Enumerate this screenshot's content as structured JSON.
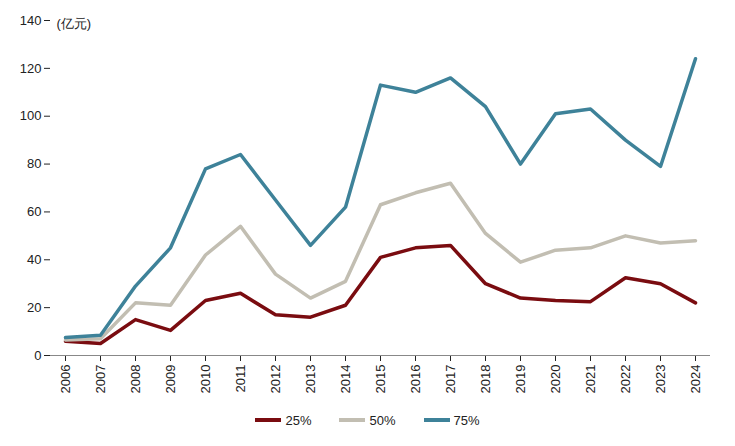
{
  "chart_data": {
    "type": "line",
    "y_label": "(亿元)",
    "categories": [
      "2006",
      "2007",
      "2008",
      "2009",
      "2010",
      "2011",
      "2012",
      "2013",
      "2014",
      "2015",
      "2016",
      "2017",
      "2018",
      "2019",
      "2020",
      "2021",
      "2022",
      "2023",
      "2024"
    ],
    "series": [
      {
        "name": "25%",
        "color": "#7a0c10",
        "values": [
          6,
          5,
          15,
          10.5,
          23,
          26,
          17,
          16,
          21,
          41,
          45,
          46,
          30,
          24,
          23,
          22.5,
          32.5,
          30,
          22
        ]
      },
      {
        "name": "50%",
        "color": "#c2beb2",
        "values": [
          6.5,
          7,
          22,
          21,
          42,
          54,
          34,
          24,
          31,
          63,
          68,
          72,
          51,
          39,
          44,
          45,
          50,
          47,
          48
        ]
      },
      {
        "name": "75%",
        "color": "#3e8299",
        "values": [
          7.5,
          8.5,
          29,
          45,
          78,
          84,
          65,
          46,
          62,
          113,
          110,
          116,
          104,
          80,
          101,
          103,
          90,
          79,
          124
        ]
      }
    ],
    "ylim": [
      0,
      140
    ],
    "yticks": [
      0,
      20,
      40,
      60,
      80,
      100,
      120,
      140
    ],
    "legend": "bottom"
  }
}
